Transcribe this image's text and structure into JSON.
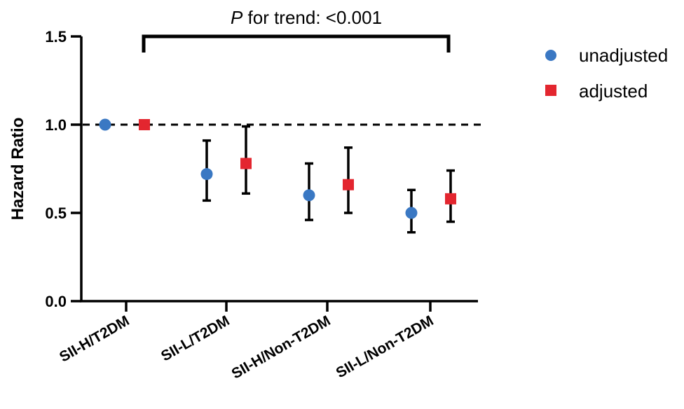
{
  "chart_data": {
    "type": "scatter",
    "ylabel": "Hazard Ratio",
    "xlabel": "",
    "ylim": [
      0,
      1.5
    ],
    "yticks": [
      "0.0",
      "0.5",
      "1.0",
      "1.5"
    ],
    "categories": [
      "SII-H/T2DM",
      "SII-L/T2DM",
      "SII-H/Non-T2DM",
      "SII-L/Non-T2DM"
    ],
    "reference_line": 1.0,
    "series": [
      {
        "name": "unadjusted",
        "marker": "circle",
        "color": "#3a78c3",
        "values": [
          1.0,
          0.72,
          0.6,
          0.5
        ],
        "ci_low": [
          null,
          0.57,
          0.46,
          0.39
        ],
        "ci_high": [
          null,
          0.91,
          0.78,
          0.63
        ]
      },
      {
        "name": "adjusted",
        "marker": "square",
        "color": "#e3262f",
        "values": [
          1.0,
          0.78,
          0.66,
          0.58
        ],
        "ci_low": [
          null,
          0.61,
          0.5,
          0.45
        ],
        "ci_high": [
          null,
          0.99,
          0.87,
          0.74
        ]
      }
    ],
    "annotation": {
      "italic_prefix": "P",
      "text": " for trend: <0.001"
    },
    "legend_position": "right"
  }
}
